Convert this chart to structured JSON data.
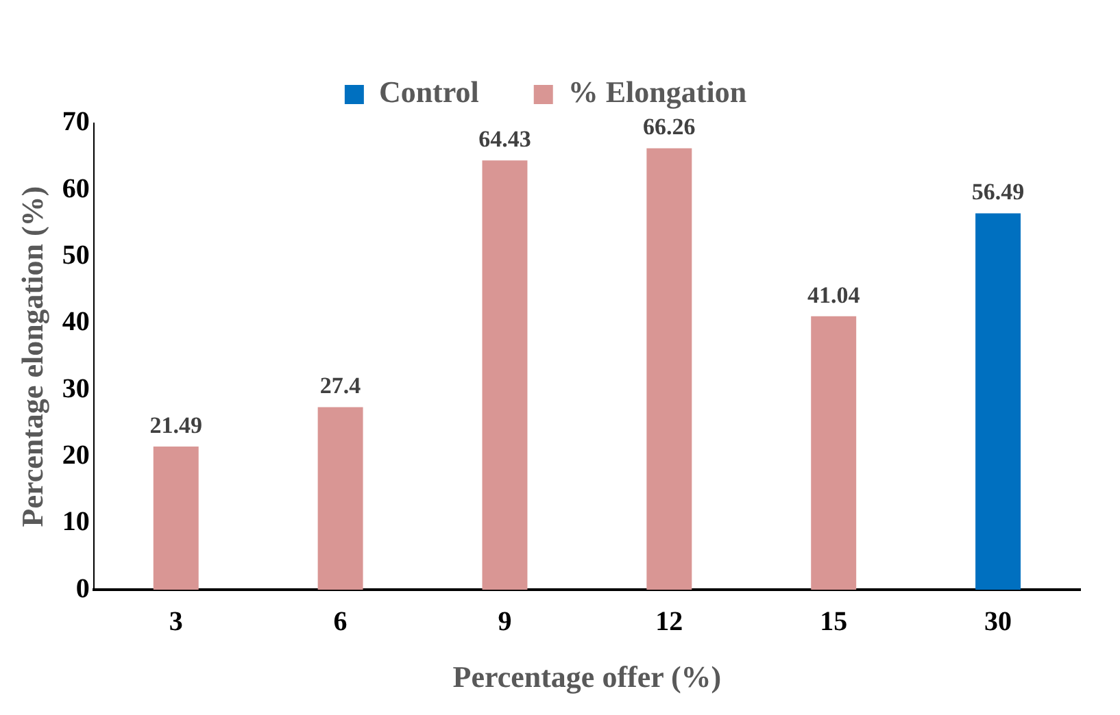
{
  "chart_data": {
    "type": "bar",
    "xlabel": "Percentage offer (%)",
    "ylabel": "Percentage elongation (%)",
    "categories": [
      "3",
      "6",
      "9",
      "12",
      "15",
      "30"
    ],
    "series": [
      {
        "name": "Control",
        "color": "#0070c0",
        "values": [
          null,
          null,
          null,
          null,
          null,
          56.49
        ]
      },
      {
        "name": "% Elongation",
        "color": "#d99694",
        "values": [
          21.49,
          27.4,
          64.43,
          66.26,
          41.04,
          null
        ]
      }
    ],
    "ylim": [
      0,
      70
    ],
    "yticks": [
      0,
      10,
      20,
      30,
      40,
      50,
      60,
      70
    ],
    "grid": false,
    "legend": "top",
    "data_labels": true
  }
}
